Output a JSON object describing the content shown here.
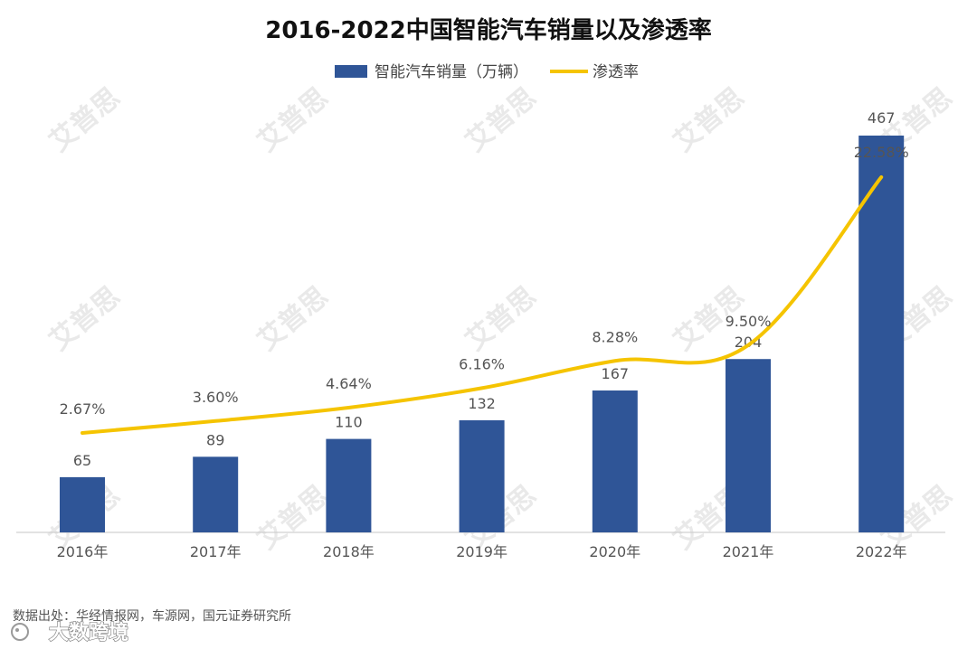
{
  "chart_data": {
    "type": "bar",
    "title": "2016-2022中国智能汽车销量以及渗透率",
    "categories": [
      "2016年",
      "2017年",
      "2018年",
      "2019年",
      "2020年",
      "2021年",
      "2022年"
    ],
    "series": [
      {
        "name": "智能汽车销量（万辆）",
        "type": "bar",
        "values": [
          65,
          89,
          110,
          132,
          167,
          204,
          467
        ],
        "labels": [
          "65",
          "89",
          "110",
          "132",
          "167",
          "204",
          "467"
        ],
        "color": "#2f5597"
      },
      {
        "name": "渗透率",
        "type": "line",
        "values": [
          2.67,
          3.6,
          4.64,
          6.16,
          8.28,
          9.5,
          22.58
        ],
        "labels": [
          "2.67%",
          "3.60%",
          "4.64%",
          "6.16%",
          "8.28%",
          "9.50%",
          "22.58%"
        ],
        "color": "#f5c400"
      }
    ],
    "legend_position": "top-center",
    "grid": false
  },
  "source_note": "数据出处：华经情报网，车源网，国元证券研究所",
  "brand": "大数跨境",
  "watermark_text": "艾普思"
}
